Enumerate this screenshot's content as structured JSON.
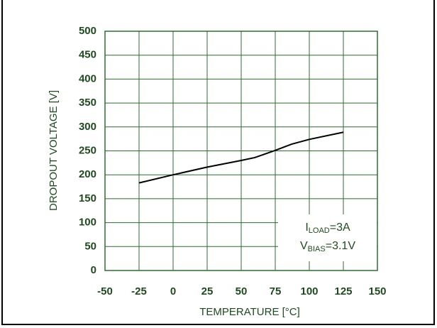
{
  "chart_data": {
    "type": "line",
    "x": [
      -25,
      0,
      25,
      50,
      60,
      75,
      87,
      100,
      125
    ],
    "series": [
      {
        "name": "Dropout Voltage",
        "color": "#000000",
        "values": [
          183,
          200,
          216,
          230,
          236,
          251,
          264,
          274,
          289
        ]
      }
    ],
    "xlim": [
      -50,
      150
    ],
    "xticks": [
      -50,
      -25,
      0,
      25,
      50,
      75,
      100,
      125,
      150
    ],
    "ylim": [
      0,
      500
    ],
    "yticks": [
      0,
      50,
      100,
      150,
      200,
      250,
      300,
      350,
      400,
      450,
      500
    ],
    "grid": true,
    "x_label": "TEMPERATURE [°C]",
    "y_label": "DROPOUT VOLTAGE [V]",
    "annotations": [
      {
        "main": "I",
        "sub": "LOAD",
        "rest": "=3A"
      },
      {
        "main": "V",
        "sub": "BIAS",
        "rest": "=3.1V"
      }
    ]
  }
}
